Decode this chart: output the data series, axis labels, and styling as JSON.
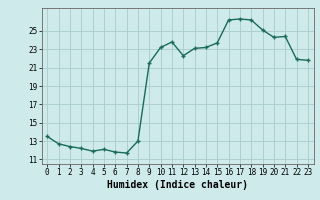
{
  "x": [
    0,
    1,
    2,
    3,
    4,
    5,
    6,
    7,
    8,
    9,
    10,
    11,
    12,
    13,
    14,
    15,
    16,
    17,
    18,
    19,
    20,
    21,
    22,
    23
  ],
  "y": [
    13.5,
    12.7,
    12.4,
    12.2,
    11.9,
    12.1,
    11.8,
    11.7,
    13.0,
    21.5,
    23.2,
    23.8,
    22.3,
    23.1,
    23.2,
    23.7,
    26.2,
    26.3,
    26.2,
    25.1,
    24.3,
    24.4,
    21.9,
    21.8
  ],
  "line_color": "#1a6b5a",
  "marker": "+",
  "marker_size": 3,
  "marker_linewidth": 1.0,
  "bg_color": "#ceeaea",
  "grid_color": "#aacccc",
  "xlabel": "Humidex (Indice chaleur)",
  "xlim": [
    -0.5,
    23.5
  ],
  "ylim": [
    10.5,
    27.5
  ],
  "yticks": [
    11,
    13,
    15,
    17,
    19,
    21,
    23,
    25
  ],
  "xticks": [
    0,
    1,
    2,
    3,
    4,
    5,
    6,
    7,
    8,
    9,
    10,
    11,
    12,
    13,
    14,
    15,
    16,
    17,
    18,
    19,
    20,
    21,
    22,
    23
  ],
  "tick_fontsize": 5.5,
  "xlabel_fontsize": 7.0,
  "line_width": 1.0
}
